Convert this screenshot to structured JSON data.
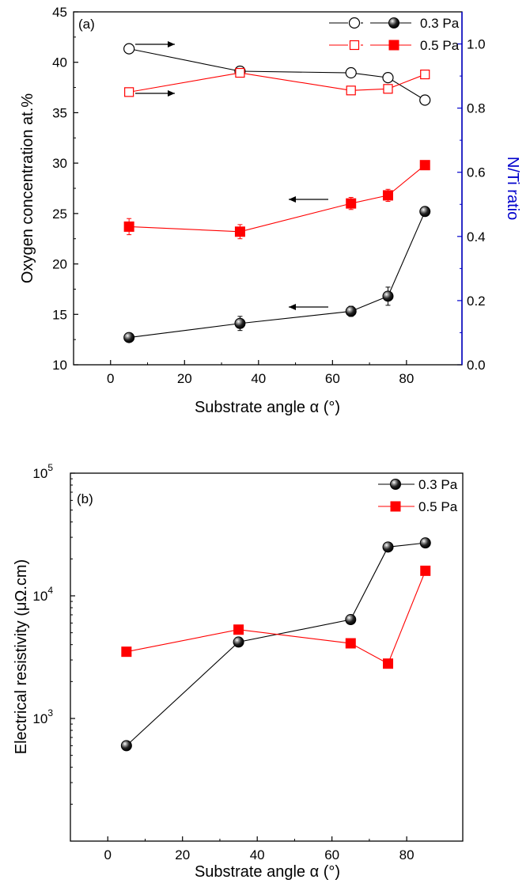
{
  "chart_data": [
    {
      "type": "line",
      "panel_label": "(a)",
      "xlabel": "Substrate angle α (°)",
      "ylabel": "Oxygen concentration at.%",
      "y2label": "N/Ti ratio",
      "xlim": [
        -10,
        95
      ],
      "ylim": [
        10,
        45
      ],
      "y2lim": [
        0.0,
        1.1
      ],
      "x_ticks": [
        "0",
        "20",
        "40",
        "60",
        "80"
      ],
      "y_ticks": [
        "10",
        "15",
        "20",
        "25",
        "30",
        "35",
        "40",
        "45"
      ],
      "y2_ticks": [
        "0.0",
        "0.2",
        "0.4",
        "0.6",
        "0.8",
        "1.0"
      ],
      "colors": {
        "black": "#000000",
        "red": "#ff0000",
        "right_axis": "#0000cc"
      },
      "legend": {
        "position": "top-right",
        "entries": [
          "0.3 Pa",
          "0.5 Pa"
        ]
      },
      "series": [
        {
          "name": "0.3 Pa",
          "axis": "left",
          "style": "filled-circle",
          "color": "#000000",
          "x": [
            5,
            35,
            65,
            75,
            85
          ],
          "values": [
            12.7,
            14.1,
            15.3,
            16.8,
            25.2
          ],
          "err": [
            0.3,
            0.7,
            0.5,
            0.9,
            0.3
          ]
        },
        {
          "name": "0.5 Pa",
          "axis": "left",
          "style": "filled-square",
          "color": "#ff0000",
          "x": [
            5,
            35,
            65,
            75,
            85
          ],
          "values": [
            23.7,
            23.2,
            26.0,
            26.8,
            29.8
          ],
          "err": [
            0.8,
            0.7,
            0.6,
            0.6,
            0.3
          ]
        },
        {
          "name": "0.3 Pa",
          "axis": "right",
          "style": "open-circle",
          "color": "#000000",
          "x": [
            5,
            35,
            65,
            75,
            85
          ],
          "values": [
            0.985,
            0.915,
            0.91,
            0.895,
            0.825
          ]
        },
        {
          "name": "0.5 Pa",
          "axis": "right",
          "style": "open-square",
          "color": "#ff0000",
          "x": [
            5,
            35,
            65,
            75,
            85
          ],
          "values": [
            0.85,
            0.91,
            0.855,
            0.86,
            0.905
          ]
        }
      ]
    },
    {
      "type": "line",
      "panel_label": "(b)",
      "xlabel": "Substrate angle α (°)",
      "ylabel": "Electrical resistivity (μΩ.cm)",
      "xlim": [
        -10,
        95
      ],
      "ylim": [
        100,
        100000
      ],
      "yscale": "log",
      "x_ticks": [
        "0",
        "20",
        "40",
        "60",
        "80"
      ],
      "y_ticks_exp": [
        "3",
        "4",
        "5"
      ],
      "legend": {
        "position": "top-right",
        "entries": [
          "0.3 Pa",
          "0.5 Pa"
        ]
      },
      "series": [
        {
          "name": "0.3 Pa",
          "style": "filled-circle",
          "color": "#000000",
          "x": [
            5,
            35,
            65,
            75,
            85
          ],
          "values": [
            600,
            4200,
            6400,
            25000,
            27000
          ]
        },
        {
          "name": "0.5 Pa",
          "style": "filled-square",
          "color": "#ff0000",
          "x": [
            5,
            35,
            65,
            75,
            85
          ],
          "values": [
            3500,
            5300,
            4100,
            2800,
            16000
          ]
        }
      ]
    }
  ]
}
